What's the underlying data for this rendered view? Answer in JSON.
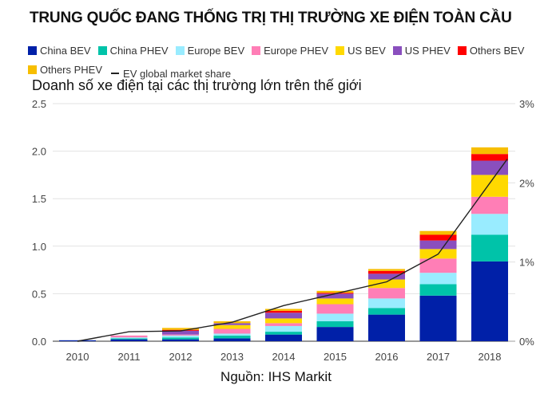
{
  "title": "TRUNG QUỐC ĐANG THỐNG TRỊ THỊ TRƯỜNG XE ĐIỆN TOÀN CẦU",
  "subtitle": "Doanh số xe điện tại các thị trường lớn trên thế giới",
  "source": "Nguồn: IHS Markit",
  "legend": [
    {
      "label": "China BEV",
      "color": "#0020a8",
      "type": "box"
    },
    {
      "label": "China PHEV",
      "color": "#00c3a9",
      "type": "box"
    },
    {
      "label": "Europe BEV",
      "color": "#99ecff",
      "type": "box"
    },
    {
      "label": "Europe PHEV",
      "color": "#ff7eb6",
      "type": "box"
    },
    {
      "label": "US BEV",
      "color": "#ffd900",
      "type": "box"
    },
    {
      "label": "US PHEV",
      "color": "#8a4fbe",
      "type": "box"
    },
    {
      "label": "Others BEV",
      "color": "#ff0000",
      "type": "box"
    },
    {
      "label": "Others PHEV",
      "color": "#f7be00",
      "type": "box"
    },
    {
      "label": "EV global market share",
      "color": "#222222",
      "type": "line"
    }
  ],
  "chart_data": {
    "type": "bar",
    "stacked": true,
    "title": "TRUNG QUỐC ĐANG THỐNG TRỊ THỊ TRƯỜNG XE ĐIỆN TOÀN CẦU",
    "subtitle": "Doanh số xe điện tại các thị trường lớn trên thế giới",
    "xlabel": "",
    "ylabel": "",
    "categories": [
      "2010",
      "2011",
      "2012",
      "2013",
      "2014",
      "2015",
      "2016",
      "2017",
      "2018"
    ],
    "ylim": [
      0,
      2.5
    ],
    "yticks": [
      "0.0",
      "0.5",
      "1.0",
      "1.5",
      "2.0",
      "2.5"
    ],
    "y2lim": [
      0,
      3
    ],
    "y2ticks": [
      "0%",
      "1%",
      "2%",
      "3%"
    ],
    "grid": true,
    "legend_position": "top",
    "series": [
      {
        "name": "China BEV",
        "color": "#0020a8",
        "values": [
          0.01,
          0.02,
          0.02,
          0.03,
          0.07,
          0.15,
          0.28,
          0.48,
          0.84
        ]
      },
      {
        "name": "China PHEV",
        "color": "#00c3a9",
        "values": [
          0.0,
          0.01,
          0.02,
          0.03,
          0.03,
          0.06,
          0.07,
          0.12,
          0.28
        ]
      },
      {
        "name": "Europe BEV",
        "color": "#99ecff",
        "values": [
          0.0,
          0.01,
          0.02,
          0.02,
          0.06,
          0.08,
          0.1,
          0.12,
          0.22
        ]
      },
      {
        "name": "Europe PHEV",
        "color": "#ff7eb6",
        "values": [
          0.0,
          0.02,
          0.01,
          0.05,
          0.03,
          0.1,
          0.11,
          0.15,
          0.18
        ]
      },
      {
        "name": "US BEV",
        "color": "#ffd900",
        "values": [
          0.0,
          0.0,
          0.0,
          0.04,
          0.05,
          0.06,
          0.09,
          0.1,
          0.23
        ]
      },
      {
        "name": "US PHEV",
        "color": "#8a4fbe",
        "values": [
          0.0,
          0.0,
          0.04,
          0.02,
          0.06,
          0.05,
          0.06,
          0.09,
          0.15
        ]
      },
      {
        "name": "Others BEV",
        "color": "#ff0000",
        "values": [
          0.0,
          0.0,
          0.01,
          0.0,
          0.02,
          0.01,
          0.03,
          0.06,
          0.07
        ]
      },
      {
        "name": "Others PHEV",
        "color": "#f7be00",
        "values": [
          0.0,
          0.0,
          0.02,
          0.02,
          0.02,
          0.02,
          0.02,
          0.04,
          0.07
        ]
      }
    ],
    "line_series": {
      "name": "EV global market share",
      "axis": "right",
      "unit": "%",
      "color": "#222222",
      "values": [
        0.0,
        0.12,
        0.13,
        0.24,
        0.45,
        0.6,
        0.75,
        1.1,
        2.3
      ]
    }
  }
}
